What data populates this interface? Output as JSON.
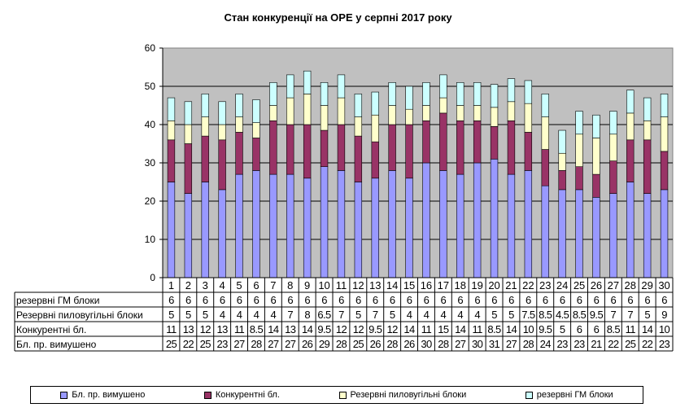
{
  "chart_data": {
    "type": "stacked-bar",
    "title": "Стан конкуренції на ОРЕ  у серпні 2017 року",
    "categories": [
      "1",
      "2",
      "3",
      "4",
      "5",
      "6",
      "7",
      "8",
      "9",
      "10",
      "11",
      "12",
      "13",
      "14",
      "15",
      "16",
      "17",
      "18",
      "19",
      "20",
      "21",
      "22",
      "23",
      "24",
      "25",
      "26",
      "27",
      "28",
      "29",
      "30"
    ],
    "ylim": [
      0,
      60
    ],
    "yticks": [
      "0",
      "10",
      "20",
      "30",
      "40",
      "50",
      "60"
    ],
    "grid": true,
    "legend_position": "bottom",
    "series": [
      {
        "name": "Бл. пр. вимушено",
        "color": "#9999ff",
        "values": [
          25,
          22,
          25,
          23,
          27,
          28,
          27,
          27,
          26,
          29,
          28,
          25,
          26,
          28,
          26,
          30,
          28,
          27,
          30,
          31,
          27,
          28,
          24,
          23,
          23,
          21,
          22,
          25,
          22,
          23
        ],
        "labels": [
          "25",
          "22",
          "25",
          "23",
          "27",
          "28",
          "27",
          "27",
          "26",
          "29",
          "28",
          "25",
          "26",
          "28",
          "26",
          "30",
          "28",
          "27",
          "30",
          "31",
          "27",
          "28",
          "24",
          "23",
          "23",
          "21",
          "22",
          "25",
          "22",
          "23"
        ]
      },
      {
        "name": "Конкурентні бл.",
        "color": "#993366",
        "values": [
          11,
          13,
          12,
          13,
          11,
          8.5,
          14,
          13,
          14,
          9.5,
          12,
          12,
          9.5,
          12,
          14,
          11,
          15,
          14,
          11,
          8.5,
          14,
          10,
          9.5,
          5,
          6,
          6,
          8.5,
          11,
          14,
          10
        ],
        "labels": [
          "11",
          "13",
          "12",
          "13",
          "11",
          "8.5",
          "14",
          "13",
          "14",
          "9.5",
          "12",
          "12",
          "9.5",
          "12",
          "14",
          "11",
          "15",
          "14",
          "11",
          "8.5",
          "14",
          "10",
          "9.5",
          "5",
          "6",
          "6",
          "8.5",
          "11",
          "14",
          "10"
        ]
      },
      {
        "name": "Резервні пиловугільні  блоки",
        "color": "#ffffcc",
        "values": [
          5,
          5,
          5,
          4,
          4,
          4,
          4,
          7,
          8,
          6.5,
          7,
          5,
          7,
          5,
          4,
          4,
          4,
          4,
          4,
          5,
          5,
          7.5,
          8.5,
          4.5,
          8.5,
          9.5,
          7,
          7,
          5,
          9
        ],
        "labels": [
          "5",
          "5",
          "5",
          "4",
          "4",
          "4",
          "4",
          "7",
          "8",
          "6.5",
          "7",
          "5",
          "7",
          "5",
          "4",
          "4",
          "4",
          "4",
          "4",
          "5",
          "5",
          "7.5",
          "8.5",
          "4.5",
          "8.5",
          "9.5",
          "7",
          "7",
          "5",
          "9"
        ]
      },
      {
        "name": "резервні ГМ блоки",
        "color": "#ccffff",
        "values": [
          6,
          6,
          6,
          6,
          6,
          6,
          6,
          6,
          6,
          6,
          6,
          6,
          6,
          6,
          6,
          6,
          6,
          6,
          6,
          6,
          6,
          6,
          6,
          6,
          6,
          6,
          6,
          6,
          6,
          6
        ],
        "labels": [
          "6",
          "6",
          "6",
          "6",
          "6",
          "6",
          "6",
          "6",
          "6",
          "6",
          "6",
          "6",
          "6",
          "6",
          "6",
          "6",
          "6",
          "6",
          "6",
          "6",
          "6",
          "6",
          "6",
          "6",
          "6",
          "6",
          "6",
          "6",
          "6",
          "6"
        ]
      }
    ],
    "table_rows": [
      {
        "label": "резервні ГМ блоки",
        "series_index": 3
      },
      {
        "label": "Резервні пиловугільні блоки",
        "series_index": 2
      },
      {
        "label": "Конкурентні бл.",
        "series_index": 1
      },
      {
        "label": "Бл. пр. вимушено",
        "series_index": 0
      }
    ]
  }
}
